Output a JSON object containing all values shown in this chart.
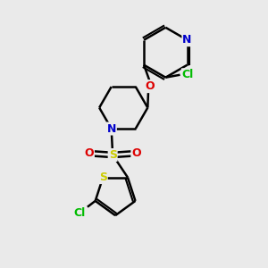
{
  "bg_color": "#eaeaea",
  "atom_colors": {
    "C": "#000000",
    "N": "#0000cc",
    "O": "#dd0000",
    "S": "#cccc00",
    "Cl": "#00bb00"
  },
  "bond_color": "#000000",
  "bond_width": 1.8,
  "fig_size": [
    3.0,
    3.0
  ],
  "dpi": 100
}
